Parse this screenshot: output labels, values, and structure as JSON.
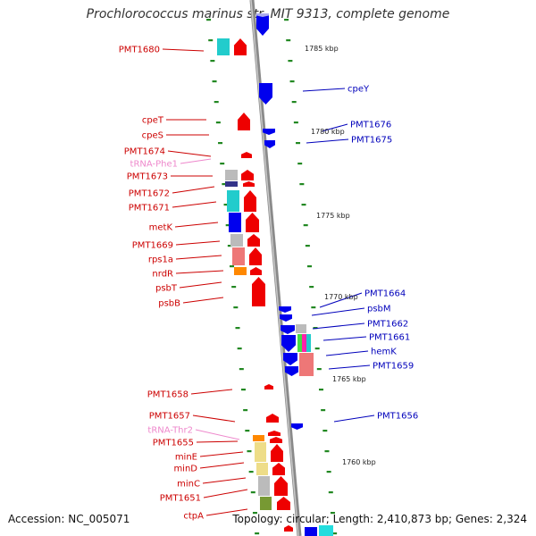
{
  "title": "Prochlorococcus marinus str. MIT 9313, complete genome",
  "footer": {
    "accession": "Accession: NC_005071",
    "topology": "Topology: circular; Length: 2,410,873 bp; Genes: 2,324"
  },
  "colors": {
    "backbone": "#9a9a9a",
    "forward_arrow": "#ee0000",
    "reverse_arrow": "#0000ee",
    "left_label": "#cc0000",
    "right_label": "#0000bb",
    "trna_label": "#ee88cc",
    "tick": "#228822"
  },
  "scale_labels": [
    "1785 kbp",
    "1780 kbp",
    "1775 kbp",
    "1770 kbp",
    "1765 kbp",
    "1760 kbp"
  ],
  "left_labels": [
    {
      "text": "PMT1680",
      "kind": "gene"
    },
    {
      "text": "cpeT",
      "kind": "gene"
    },
    {
      "text": "cpeS",
      "kind": "gene"
    },
    {
      "text": "PMT1674",
      "kind": "gene"
    },
    {
      "text": "tRNA-Phe1",
      "kind": "trna"
    },
    {
      "text": "PMT1673",
      "kind": "gene"
    },
    {
      "text": "PMT1672",
      "kind": "gene"
    },
    {
      "text": "PMT1671",
      "kind": "gene"
    },
    {
      "text": "metK",
      "kind": "gene"
    },
    {
      "text": "PMT1669",
      "kind": "gene"
    },
    {
      "text": "rps1a",
      "kind": "gene"
    },
    {
      "text": "nrdR",
      "kind": "gene"
    },
    {
      "text": "psbT",
      "kind": "gene"
    },
    {
      "text": "psbB",
      "kind": "gene"
    },
    {
      "text": "PMT1658",
      "kind": "gene"
    },
    {
      "text": "PMT1657",
      "kind": "gene"
    },
    {
      "text": "tRNA-Thr2",
      "kind": "trna"
    },
    {
      "text": "PMT1655",
      "kind": "gene"
    },
    {
      "text": "minE",
      "kind": "gene"
    },
    {
      "text": "minD",
      "kind": "gene"
    },
    {
      "text": "minC",
      "kind": "gene"
    },
    {
      "text": "PMT1651",
      "kind": "gene"
    },
    {
      "text": "ctpA",
      "kind": "gene"
    }
  ],
  "right_labels": [
    {
      "text": "cpeY"
    },
    {
      "text": "PMT1676"
    },
    {
      "text": "PMT1675"
    },
    {
      "text": "PMT1664"
    },
    {
      "text": "psbM"
    },
    {
      "text": "PMT1662"
    },
    {
      "text": "PMT1661"
    },
    {
      "text": "hemK"
    },
    {
      "text": "PMT1659"
    },
    {
      "text": "PMT1656"
    }
  ]
}
